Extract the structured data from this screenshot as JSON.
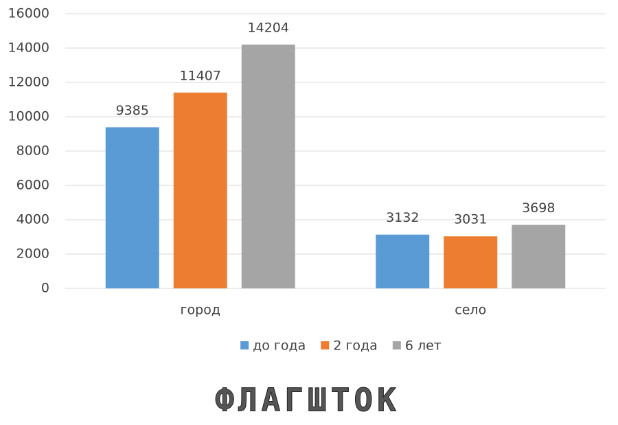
{
  "chart_data": {
    "type": "bar",
    "categories": [
      "город",
      "село"
    ],
    "series": [
      {
        "name": "до года",
        "color": "#5b9bd5",
        "values": [
          9385,
          3132
        ]
      },
      {
        "name": "2 года",
        "color": "#ed7d31",
        "values": [
          11407,
          3031
        ]
      },
      {
        "name": "6 лет",
        "color": "#a5a5a5",
        "values": [
          14204,
          3698
        ]
      }
    ],
    "ylim": [
      0,
      16000
    ],
    "yticks": [
      0,
      2000,
      4000,
      6000,
      8000,
      10000,
      12000,
      14000,
      16000
    ],
    "grid": true,
    "legend": "bottom",
    "watermark": "ФЛАГШТОК"
  }
}
